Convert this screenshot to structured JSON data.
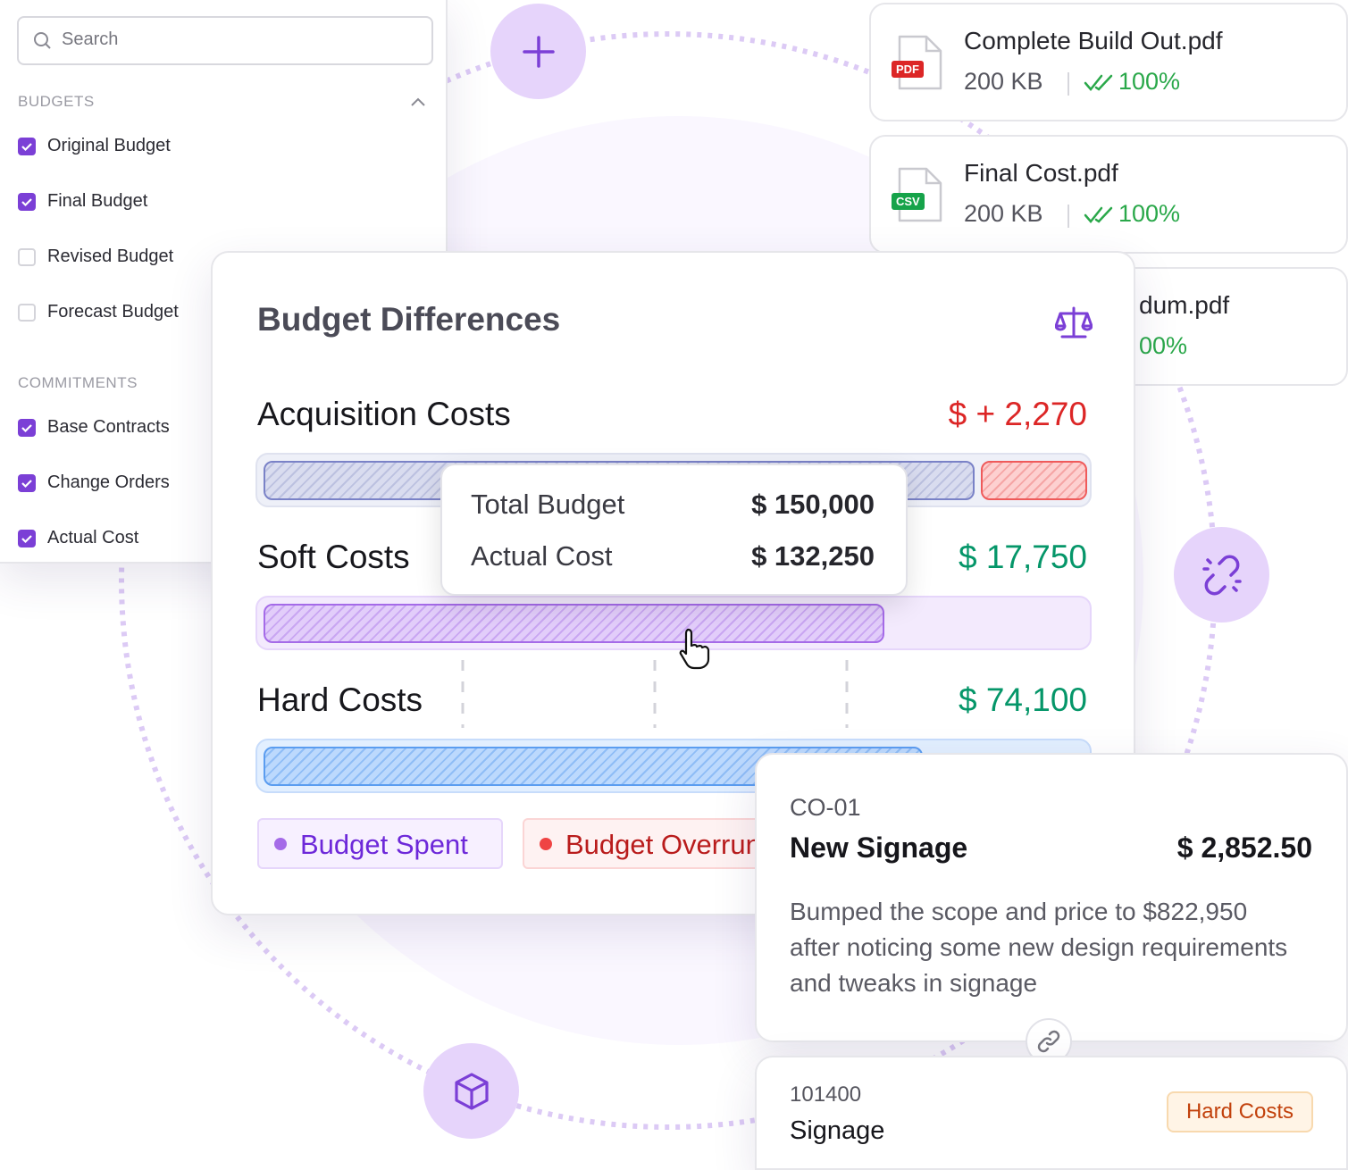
{
  "filters": {
    "search_placeholder": "Search",
    "groups": [
      {
        "title": "BUDGETS",
        "items": [
          {
            "label": "Original Budget",
            "checked": true
          },
          {
            "label": "Final Budget",
            "checked": true
          },
          {
            "label": "Revised Budget",
            "checked": false
          },
          {
            "label": "Forecast Budget",
            "checked": false
          }
        ]
      },
      {
        "title": "COMMITMENTS",
        "items": [
          {
            "label": "Base Contracts",
            "checked": true
          },
          {
            "label": "Change Orders",
            "checked": true
          },
          {
            "label": "Actual Cost",
            "checked": true
          }
        ]
      }
    ]
  },
  "files": [
    {
      "badge": "PDF",
      "name": "Complete Build Out.pdf",
      "size": "200 KB",
      "progress": "100%"
    },
    {
      "badge": "CSV",
      "name": "Final Cost.pdf",
      "size": "200 KB",
      "progress": "100%"
    },
    {
      "name": "dum.pdf",
      "progress": "00%"
    }
  ],
  "budget_panel": {
    "title": "Budget Differences",
    "rows": [
      {
        "label": "Acquisition Costs",
        "amount": "$ + 2,270"
      },
      {
        "label": "Soft Costs",
        "amount": "$ 17,750"
      },
      {
        "label": "Hard Costs",
        "amount": "$ 74,100"
      }
    ],
    "tooltip": [
      {
        "label": "Total Budget",
        "amount": "$ 150,000"
      },
      {
        "label": "Actual Cost",
        "amount": "$ 132,250"
      }
    ],
    "legend": [
      "Budget Spent",
      "Budget Overrun"
    ]
  },
  "change_order": {
    "code": "CO-01",
    "title": "New Signage",
    "amount": "$ 2,852.50",
    "description": "Bumped the scope and price to $822,950 after noticing some new design requirements and tweaks in signage"
  },
  "cost_code": {
    "code": "101400",
    "name": "Signage",
    "tag": "Hard Costs"
  }
}
